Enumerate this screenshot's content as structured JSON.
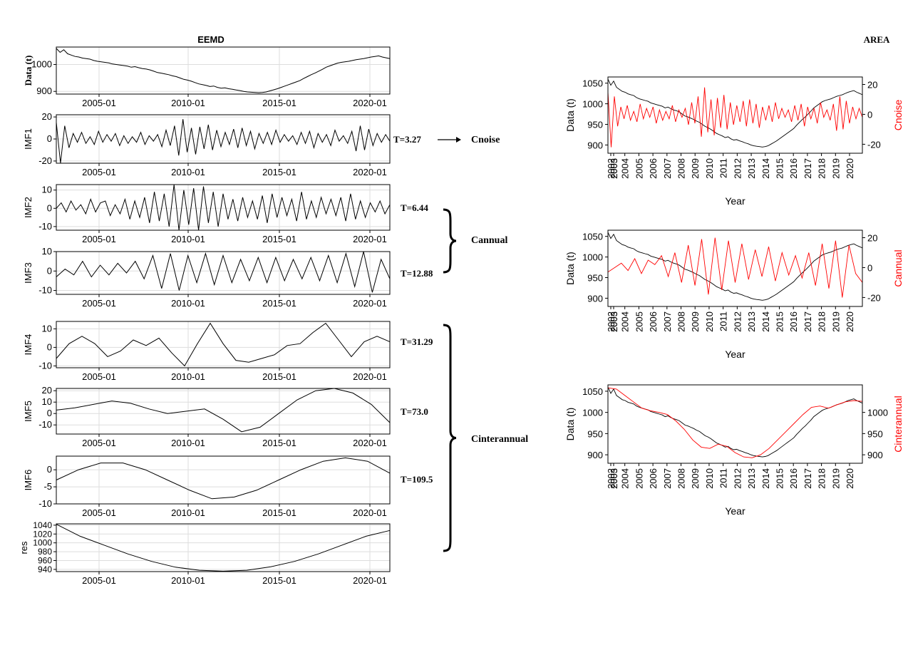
{
  "left_title": "EEMD",
  "right_title": "AREA",
  "ann_T": [
    "T=3.27",
    "T=6.44",
    "T=12.88",
    "T=31.29",
    "T=73.0",
    "T=109.5"
  ],
  "group_labels": [
    "Cnoise",
    "Cannual",
    "Cinterannual"
  ],
  "chart_data": [
    {
      "type": "line",
      "title": "",
      "ylabel": "Data (t)",
      "xticks": [
        "2005-01",
        "2010-01",
        "2015-01",
        "2020-01"
      ],
      "yticks": [
        "900",
        "1000"
      ],
      "ylim": [
        890,
        1065
      ],
      "grid": true,
      "series": [
        {
          "values": [
            1060,
            1045,
            1055,
            1040,
            1035,
            1030,
            1028,
            1024,
            1022,
            1020,
            1015,
            1012,
            1010,
            1008,
            1006,
            1002,
            1000,
            998,
            996,
            994,
            990,
            992,
            988,
            985,
            983,
            980,
            975,
            970,
            968,
            965,
            962,
            958,
            955,
            950,
            945,
            942,
            938,
            933,
            928,
            925,
            922,
            918,
            920,
            915,
            912,
            913,
            910,
            908,
            905,
            903,
            900,
            898,
            897,
            896,
            895,
            896,
            898,
            902,
            906,
            910,
            915,
            920,
            925,
            930,
            935,
            940,
            948,
            955,
            962,
            968,
            975,
            982,
            990,
            995,
            1000,
            1005,
            1008,
            1010,
            1012,
            1015,
            1018,
            1020,
            1022,
            1025,
            1028,
            1030,
            1032,
            1028,
            1025,
            1022
          ]
        }
      ]
    },
    {
      "type": "line",
      "ylabel": "IMF1",
      "xticks": [
        "2005-01",
        "2010-01",
        "2015-01",
        "2020-01"
      ],
      "yticks": [
        "-20",
        "0",
        "20"
      ],
      "ylim": [
        -22,
        22
      ],
      "grid": true,
      "series": [
        {
          "values": [
            15,
            -22,
            12,
            -8,
            5,
            -3,
            6,
            -4,
            2,
            -5,
            7,
            -3,
            4,
            -2,
            5,
            -6,
            3,
            -4,
            2,
            -3,
            6,
            -5,
            3,
            -2,
            4,
            -7,
            8,
            -6,
            12,
            -15,
            18,
            -12,
            10,
            -14,
            11,
            -9,
            13,
            -10,
            8,
            -7,
            6,
            -5,
            9,
            -8,
            10,
            -6,
            7,
            -9,
            5,
            -4,
            6,
            -5,
            8,
            -3,
            4,
            -2,
            3,
            -5,
            6,
            -4,
            7,
            -8,
            5,
            -3,
            4,
            -6,
            8,
            -2,
            3,
            -4,
            7,
            -11,
            12,
            -10,
            9,
            -6,
            5,
            -3,
            4,
            -2
          ]
        }
      ]
    },
    {
      "type": "line",
      "ylabel": "IMF2",
      "xticks": [
        "2005-01",
        "2010-01",
        "2015-01",
        "2020-01"
      ],
      "yticks": [
        "-10",
        "0",
        "10"
      ],
      "ylim": [
        -12,
        13
      ],
      "grid": true,
      "series": [
        {
          "values": [
            0,
            3,
            -2,
            4,
            -1,
            2,
            -3,
            5,
            -2,
            3,
            4,
            -4,
            2,
            -3,
            5,
            -6,
            4,
            -5,
            6,
            -8,
            9,
            -7,
            8,
            -10,
            13,
            -12,
            10,
            -9,
            11,
            -12,
            12,
            -8,
            9,
            -10,
            8,
            -6,
            5,
            -7,
            6,
            -5,
            4,
            -6,
            7,
            -8,
            8,
            -5,
            6,
            -4,
            5,
            -7,
            9,
            -6,
            4,
            -5,
            6,
            -3,
            5,
            -4,
            6,
            -7,
            8,
            -6,
            4,
            -5,
            3,
            -2,
            4,
            -3,
            2
          ]
        }
      ]
    },
    {
      "type": "line",
      "ylabel": "IMF3",
      "xticks": [
        "2005-01",
        "2010-01",
        "2015-01",
        "2020-01"
      ],
      "yticks": [
        "-10",
        "0",
        "10"
      ],
      "ylim": [
        -12,
        10
      ],
      "grid": true,
      "series": [
        {
          "values": [
            -3,
            1,
            -2,
            5,
            -3,
            3,
            -2,
            4,
            -1,
            5,
            -4,
            8,
            -9,
            9,
            -10,
            8,
            -6,
            9,
            -7,
            8,
            -6,
            6,
            -5,
            7,
            -6,
            7,
            -5,
            6,
            -4,
            7,
            -5,
            8,
            -6,
            9,
            -8,
            10,
            -11,
            6,
            -4
          ]
        }
      ]
    },
    {
      "type": "line",
      "ylabel": "IMF4",
      "xticks": [
        "2005-01",
        "2010-01",
        "2015-01",
        "2020-01"
      ],
      "yticks": [
        "-10",
        "0",
        "10"
      ],
      "ylim": [
        -11,
        14
      ],
      "grid": true,
      "series": [
        {
          "values": [
            -6,
            2,
            6,
            2,
            -5,
            -2,
            4,
            1,
            5,
            -3,
            -10,
            2,
            13,
            2,
            -7,
            -8,
            -6,
            -4,
            1,
            2,
            8,
            13,
            4,
            -5,
            3,
            6,
            3
          ]
        }
      ]
    },
    {
      "type": "line",
      "ylabel": "IMF5",
      "xticks": [
        "2005-01",
        "2010-01",
        "2015-01",
        "2020-01"
      ],
      "yticks": [
        "-10",
        "0",
        "10",
        "20"
      ],
      "ylim": [
        -18,
        22
      ],
      "grid": true,
      "series": [
        {
          "values": [
            3,
            5,
            8,
            11,
            9,
            4,
            0,
            2,
            4,
            -5,
            -16,
            -12,
            0,
            12,
            20,
            22,
            18,
            8,
            -8
          ]
        }
      ]
    },
    {
      "type": "line",
      "ylabel": "IMF6",
      "xticks": [
        "2005-01",
        "2010-01",
        "2015-01",
        "2020-01"
      ],
      "yticks": [
        "-10",
        "-5",
        "0"
      ],
      "ylim": [
        -10,
        4
      ],
      "grid": true,
      "series": [
        {
          "values": [
            -3,
            0,
            2,
            2,
            0,
            -3,
            -6,
            -8.5,
            -8,
            -6,
            -3,
            0,
            2.5,
            3.5,
            2.5,
            -1
          ]
        }
      ]
    },
    {
      "type": "line",
      "ylabel": "res",
      "xticks": [
        "2005-01",
        "2010-01",
        "2015-01",
        "2020-01"
      ],
      "yticks": [
        "940",
        "960",
        "980",
        "1000",
        "1020",
        "1040"
      ],
      "ylim": [
        935,
        1043
      ],
      "grid": true,
      "series": [
        {
          "values": [
            1042,
            1015,
            995,
            975,
            958,
            945,
            938,
            936,
            938,
            946,
            958,
            975,
            995,
            1015,
            1028
          ]
        }
      ]
    },
    {
      "type": "line",
      "xlabel": "Year",
      "ylabel": "Data (t)",
      "ylabel_right": "Cnoise",
      "xticks": [
        "2002",
        "2003",
        "2003",
        "2004",
        "2005",
        "2006",
        "2007",
        "2008",
        "2009",
        "2010",
        "2011",
        "2012",
        "2013",
        "2014",
        "2015",
        "2016",
        "2017",
        "2018",
        "2019",
        "2020"
      ],
      "yticks": [
        "900",
        "950",
        "1000",
        "1050"
      ],
      "yticks_right": [
        "-20",
        "0",
        "20"
      ],
      "ylim": [
        880,
        1065
      ],
      "ylim_right": [
        -26,
        25
      ],
      "series": [
        {
          "axis": "left",
          "color": "#000000",
          "values": [
            1060,
            1045,
            1055,
            1040,
            1035,
            1030,
            1028,
            1024,
            1022,
            1020,
            1015,
            1012,
            1010,
            1008,
            1006,
            1002,
            1000,
            998,
            996,
            994,
            990,
            992,
            988,
            985,
            983,
            980,
            975,
            970,
            968,
            965,
            962,
            958,
            955,
            950,
            945,
            942,
            938,
            933,
            928,
            925,
            922,
            918,
            920,
            915,
            912,
            913,
            910,
            908,
            905,
            903,
            900,
            898,
            897,
            896,
            895,
            896,
            898,
            902,
            906,
            910,
            915,
            920,
            925,
            930,
            935,
            940,
            948,
            955,
            962,
            968,
            975,
            982,
            990,
            995,
            1000,
            1005,
            1008,
            1010,
            1012,
            1015,
            1018,
            1020,
            1022,
            1025,
            1028,
            1030,
            1032,
            1028,
            1025,
            1022
          ]
        },
        {
          "axis": "right",
          "color": "#ff0000",
          "values": [
            15,
            -22,
            12,
            -8,
            5,
            -3,
            6,
            -4,
            2,
            -5,
            7,
            -3,
            4,
            -2,
            5,
            -6,
            3,
            -4,
            2,
            -3,
            6,
            -5,
            3,
            -2,
            4,
            -7,
            8,
            -6,
            12,
            -15,
            18,
            -12,
            10,
            -14,
            11,
            -9,
            13,
            -10,
            8,
            -7,
            6,
            -5,
            9,
            -8,
            10,
            -6,
            7,
            -9,
            5,
            -4,
            6,
            -5,
            8,
            -3,
            4,
            -2,
            3,
            -5,
            6,
            -4,
            7,
            -8,
            5,
            -3,
            4,
            -6,
            8,
            -2,
            3,
            -4,
            7,
            -11,
            12,
            -10,
            9,
            -6,
            5,
            -3,
            4,
            -2
          ]
        }
      ]
    },
    {
      "type": "line",
      "xlabel": "Year",
      "ylabel": "Data (t)",
      "ylabel_right": "Cannual",
      "xticks": [
        "2002",
        "2003",
        "2003",
        "2004",
        "2005",
        "2006",
        "2007",
        "2008",
        "2009",
        "2010",
        "2011",
        "2012",
        "2013",
        "2014",
        "2015",
        "2016",
        "2017",
        "2018",
        "2019",
        "2020"
      ],
      "yticks": [
        "900",
        "950",
        "1000",
        "1050"
      ],
      "yticks_right": [
        "-20",
        "0",
        "20"
      ],
      "ylim": [
        880,
        1065
      ],
      "ylim_right": [
        -26,
        25
      ],
      "series": [
        {
          "axis": "left",
          "color": "#000000",
          "values": [
            1060,
            1045,
            1055,
            1040,
            1035,
            1030,
            1028,
            1024,
            1022,
            1020,
            1015,
            1012,
            1010,
            1008,
            1006,
            1002,
            1000,
            998,
            996,
            994,
            990,
            992,
            988,
            985,
            983,
            980,
            975,
            970,
            968,
            965,
            962,
            958,
            955,
            950,
            945,
            942,
            938,
            933,
            928,
            925,
            922,
            918,
            920,
            915,
            912,
            913,
            910,
            908,
            905,
            903,
            900,
            898,
            897,
            896,
            895,
            896,
            898,
            902,
            906,
            910,
            915,
            920,
            925,
            930,
            935,
            940,
            948,
            955,
            962,
            968,
            975,
            982,
            990,
            995,
            1000,
            1005,
            1008,
            1010,
            1012,
            1015,
            1018,
            1020,
            1022,
            1025,
            1028,
            1030,
            1032,
            1028,
            1025,
            1022
          ]
        },
        {
          "axis": "right",
          "color": "#ff0000",
          "values": [
            -3,
            0,
            3,
            -2,
            6,
            -4,
            5,
            2,
            8,
            -6,
            10,
            -10,
            15,
            -12,
            19,
            -18,
            20,
            -15,
            18,
            -10,
            16,
            -8,
            12,
            -6,
            14,
            -9,
            10,
            -5,
            8,
            -7,
            10,
            -12,
            16,
            -14,
            18,
            -20,
            15,
            -4,
            -10
          ]
        }
      ]
    },
    {
      "type": "line",
      "xlabel": "Year",
      "ylabel": "Data (t)",
      "ylabel_right": "Cinterannual",
      "xticks": [
        "2002",
        "2003",
        "2003",
        "2004",
        "2005",
        "2006",
        "2007",
        "2008",
        "2009",
        "2010",
        "2011",
        "2012",
        "2013",
        "2014",
        "2015",
        "2016",
        "2017",
        "2018",
        "2019",
        "2020"
      ],
      "yticks": [
        "900",
        "950",
        "1000",
        "1050"
      ],
      "yticks_right": [
        "900",
        "950",
        "1000"
      ],
      "ylim": [
        880,
        1065
      ],
      "ylim_right": [
        880,
        1065
      ],
      "series": [
        {
          "axis": "left",
          "color": "#000000",
          "values": [
            1060,
            1045,
            1055,
            1040,
            1035,
            1030,
            1028,
            1024,
            1022,
            1020,
            1015,
            1012,
            1010,
            1008,
            1006,
            1002,
            1000,
            998,
            996,
            994,
            990,
            992,
            988,
            985,
            983,
            980,
            975,
            970,
            968,
            965,
            962,
            958,
            955,
            950,
            945,
            942,
            938,
            933,
            928,
            925,
            922,
            918,
            920,
            915,
            912,
            913,
            910,
            908,
            905,
            903,
            900,
            898,
            897,
            896,
            895,
            896,
            898,
            902,
            906,
            910,
            915,
            920,
            925,
            930,
            935,
            940,
            948,
            955,
            962,
            968,
            975,
            982,
            990,
            995,
            1000,
            1005,
            1008,
            1010,
            1012,
            1015,
            1018,
            1020,
            1022,
            1025,
            1028,
            1030,
            1032,
            1028,
            1025,
            1022
          ]
        },
        {
          "axis": "right",
          "color": "#ff0000",
          "values": [
            1058,
            1055,
            1040,
            1025,
            1010,
            1004,
            1000,
            995,
            980,
            960,
            935,
            918,
            915,
            925,
            920,
            905,
            895,
            893,
            900,
            915,
            935,
            955,
            975,
            995,
            1012,
            1015,
            1010,
            1018,
            1025,
            1028,
            1026
          ]
        }
      ]
    }
  ]
}
